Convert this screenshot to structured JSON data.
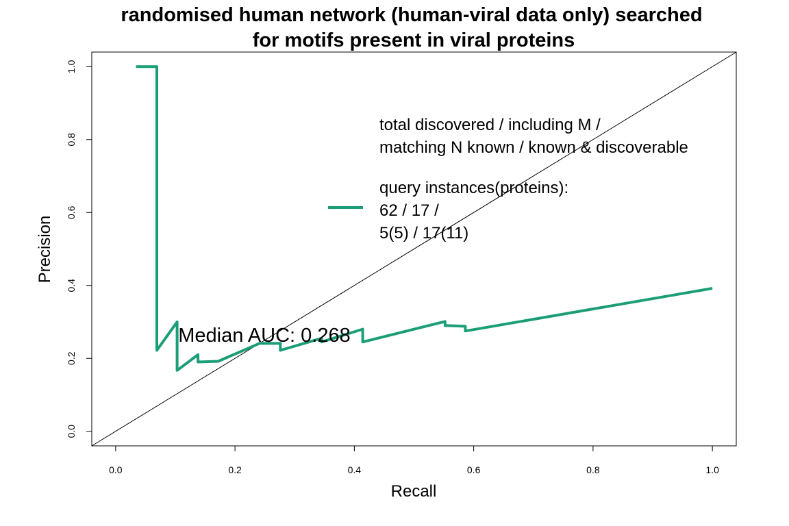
{
  "chart_data": {
    "type": "line",
    "title_lines": [
      "randomised human network (human-viral data only) searched",
      "for motifs present in viral proteins"
    ],
    "xlabel": "Recall",
    "ylabel": "Precision",
    "xlim": [
      -0.04,
      1.04
    ],
    "ylim": [
      -0.04,
      1.04
    ],
    "x_ticks": [
      0.0,
      0.2,
      0.4,
      0.6,
      0.8,
      1.0
    ],
    "x_tick_labels": [
      "0.0",
      "0.2",
      "0.4",
      "0.6",
      "0.8",
      "1.0"
    ],
    "y_ticks": [
      0.0,
      0.2,
      0.4,
      0.6,
      0.8,
      1.0
    ],
    "y_tick_labels": [
      "0.0",
      "0.2",
      "0.4",
      "0.6",
      "0.8",
      "1.0"
    ],
    "grid": false,
    "reference_line": {
      "from": [
        -0.04,
        -0.04
      ],
      "to": [
        1.04,
        1.04
      ],
      "color": "#000000"
    },
    "series": [
      {
        "color": "#1b9e77",
        "x": [
          0.034,
          0.069,
          0.069,
          0.103,
          0.103,
          0.138,
          0.138,
          0.172,
          0.241,
          0.276,
          0.276,
          0.345,
          0.345,
          0.414,
          0.414,
          0.552,
          0.552,
          0.586,
          0.586,
          1.0
        ],
        "y": [
          1.0,
          1.0,
          0.222,
          0.3,
          0.167,
          0.21,
          0.19,
          0.192,
          0.241,
          0.241,
          0.222,
          0.255,
          0.245,
          0.28,
          0.245,
          0.301,
          0.29,
          0.288,
          0.275,
          0.392
        ]
      }
    ],
    "legend": {
      "position": "top-right",
      "header_lines": [
        "total discovered / including M /",
        "matching N known / known & discoverable"
      ],
      "entry_lines": [
        "query instances(proteins):",
        "62 / 17 /",
        "5(5) / 17(11)"
      ],
      "color": "#1b9e77"
    },
    "annotation": "Median AUC: 0.268"
  }
}
